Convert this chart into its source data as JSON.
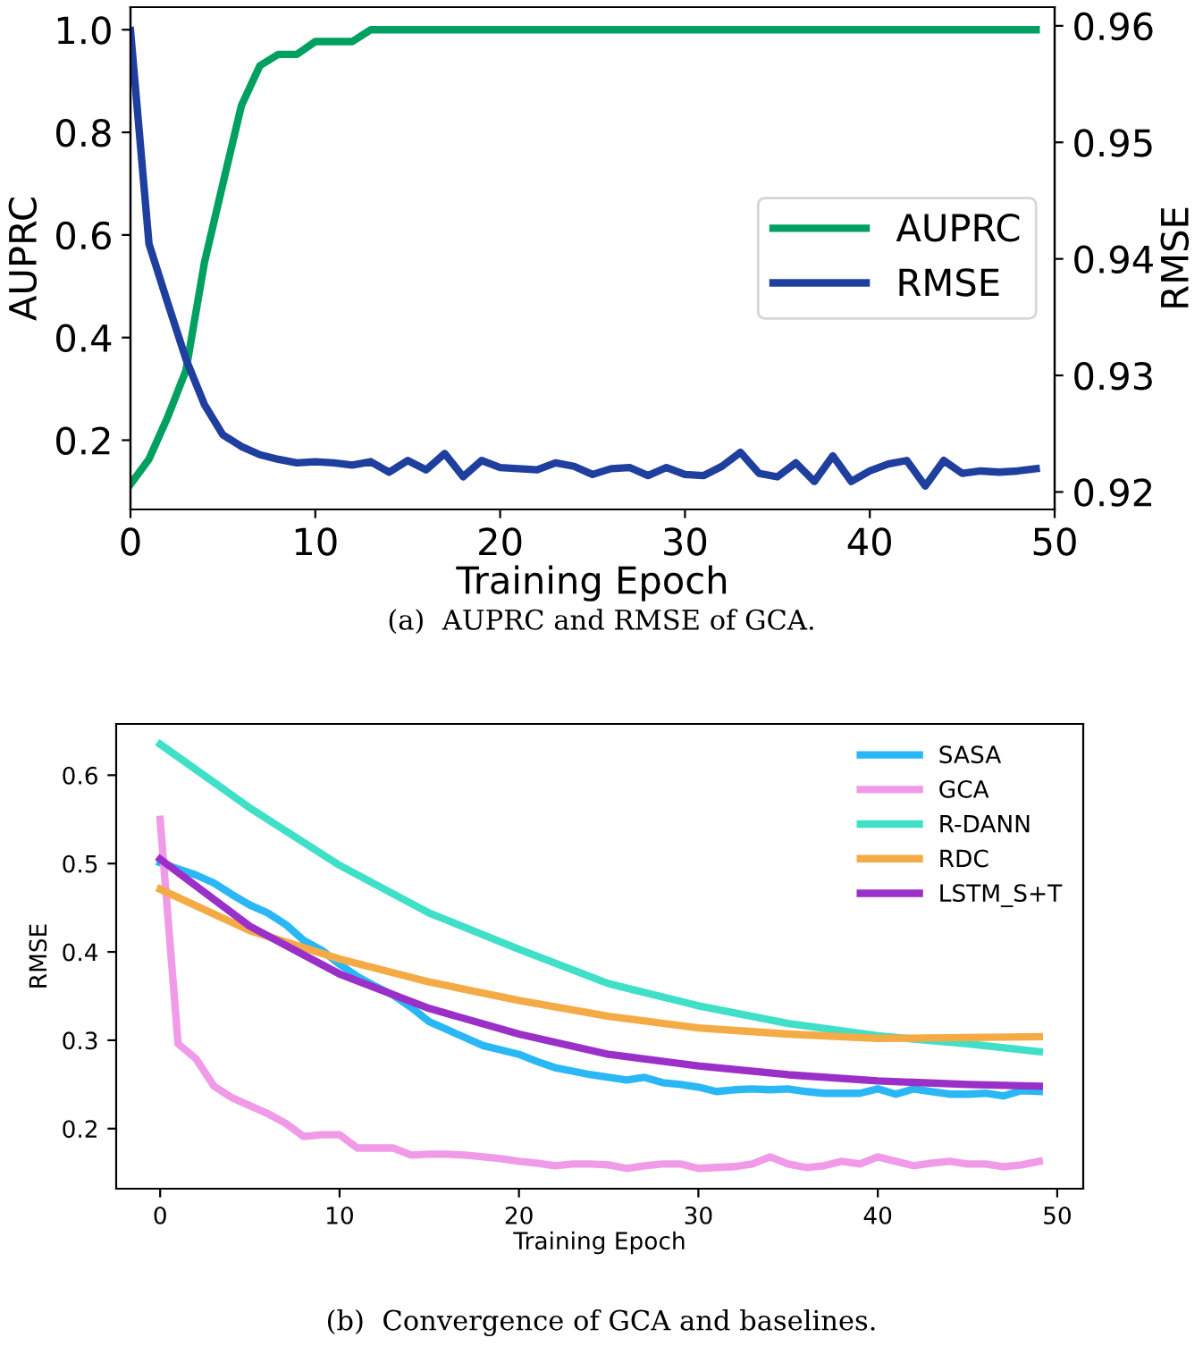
{
  "chart_data": [
    {
      "type": "line",
      "xlabel": "Training Epoch",
      "ylabel": "AUPRC",
      "y2label": "RMSE",
      "annotations": [
        "(a)  AUPRC and RMSE of GCA."
      ],
      "xlim": [
        0,
        50
      ],
      "xticks": [
        0,
        10,
        20,
        30,
        40,
        50
      ],
      "ylim": [
        0.065,
        1.044
      ],
      "yticks": [
        {
          "value": 0.2,
          "label": "0.2"
        },
        {
          "value": 0.4,
          "label": "0.4"
        },
        {
          "value": 0.6,
          "label": "0.6"
        },
        {
          "value": 0.8,
          "label": "0.8"
        },
        {
          "value": 1.0,
          "label": "1.0"
        }
      ],
      "y2lim": [
        0.9185,
        0.9616
      ],
      "y2ticks": [
        0.92,
        0.93,
        0.94,
        0.95,
        0.96
      ],
      "legend": "right",
      "grid": false,
      "series": [
        {
          "name": "AUPRC",
          "color": "#00a060",
          "x": [
            0,
            1,
            2,
            3,
            4,
            5,
            6,
            7,
            8,
            9,
            10,
            11,
            12,
            13,
            49
          ],
          "values": [
            0.114,
            0.163,
            0.244,
            0.336,
            0.546,
            0.7,
            0.852,
            0.93,
            0.952,
            0.952,
            0.977,
            0.977,
            0.977,
            1.0,
            1.0
          ]
        },
        {
          "name": "RMSE",
          "color": "#1f3f9f",
          "axis": "y2",
          "x": [
            0,
            1,
            2,
            3,
            4,
            5,
            6,
            7,
            8,
            9,
            10,
            11,
            12,
            13,
            14,
            15,
            16,
            17,
            18,
            19,
            20,
            21,
            22,
            23,
            24,
            25,
            26,
            27,
            28,
            29,
            30,
            31,
            32,
            33,
            34,
            35,
            36,
            37,
            38,
            39,
            40,
            41,
            42,
            43,
            44,
            45,
            46,
            47,
            48,
            49
          ],
          "values": [
            0.9596,
            0.9413,
            0.9363,
            0.9314,
            0.9275,
            0.9249,
            0.9239,
            0.9232,
            0.9228,
            0.9225,
            0.9226,
            0.9225,
            0.9223,
            0.9226,
            0.9217,
            0.9227,
            0.9219,
            0.9233,
            0.9213,
            0.9227,
            0.9221,
            0.922,
            0.9219,
            0.9225,
            0.9222,
            0.9215,
            0.922,
            0.9221,
            0.9214,
            0.9221,
            0.9215,
            0.9214,
            0.9222,
            0.9234,
            0.9216,
            0.9213,
            0.9225,
            0.9209,
            0.9231,
            0.9209,
            0.9218,
            0.9224,
            0.9227,
            0.9205,
            0.9227,
            0.9216,
            0.9218,
            0.9217,
            0.9218,
            0.922
          ]
        }
      ]
    },
    {
      "type": "line",
      "xlabel": "Training Epoch",
      "ylabel": "RMSE",
      "annotations": [
        "(b)  Convergence of GCA and baselines."
      ],
      "xlim": [
        -2.45,
        51.45
      ],
      "xticks": [
        0,
        10,
        20,
        30,
        40,
        50
      ],
      "ylim": [
        0.132,
        0.658
      ],
      "yticks": [
        0.2,
        0.3,
        0.4,
        0.5,
        0.6
      ],
      "legend": "top right",
      "grid": false,
      "series": [
        {
          "name": "SASA",
          "color": "#2ab7f5",
          "x": [
            0,
            1,
            2,
            3,
            4,
            5,
            6,
            7,
            8,
            9,
            10,
            11,
            12,
            13,
            14,
            15,
            16,
            17,
            18,
            19,
            20,
            21,
            22,
            23,
            24,
            25,
            26,
            27,
            28,
            29,
            30,
            31,
            32,
            33,
            34,
            35,
            36,
            37,
            38,
            39,
            40,
            41,
            42,
            43,
            44,
            45,
            46,
            47,
            48,
            49
          ],
          "values": [
            0.501,
            0.494,
            0.487,
            0.478,
            0.465,
            0.453,
            0.444,
            0.431,
            0.413,
            0.402,
            0.386,
            0.372,
            0.361,
            0.351,
            0.337,
            0.321,
            0.312,
            0.303,
            0.294,
            0.289,
            0.284,
            0.276,
            0.269,
            0.265,
            0.261,
            0.258,
            0.255,
            0.258,
            0.252,
            0.25,
            0.247,
            0.242,
            0.244,
            0.245,
            0.244,
            0.245,
            0.242,
            0.24,
            0.24,
            0.24,
            0.245,
            0.239,
            0.245,
            0.242,
            0.239,
            0.239,
            0.24,
            0.237,
            0.243,
            0.242
          ]
        },
        {
          "name": "GCA",
          "color": "#f09ae8",
          "x": [
            0,
            1,
            2,
            3,
            4,
            5,
            6,
            7,
            8,
            9,
            10,
            11,
            12,
            13,
            14,
            15,
            16,
            17,
            18,
            19,
            20,
            21,
            22,
            23,
            24,
            25,
            26,
            27,
            28,
            29,
            30,
            31,
            32,
            33,
            34,
            35,
            36,
            37,
            38,
            39,
            40,
            41,
            42,
            43,
            44,
            45,
            46,
            47,
            48,
            49
          ],
          "values": [
            0.55,
            0.296,
            0.279,
            0.248,
            0.235,
            0.226,
            0.217,
            0.206,
            0.191,
            0.193,
            0.193,
            0.178,
            0.178,
            0.178,
            0.17,
            0.171,
            0.171,
            0.17,
            0.168,
            0.166,
            0.163,
            0.161,
            0.158,
            0.16,
            0.16,
            0.159,
            0.155,
            0.158,
            0.16,
            0.16,
            0.155,
            0.156,
            0.157,
            0.16,
            0.168,
            0.16,
            0.156,
            0.158,
            0.163,
            0.16,
            0.168,
            0.163,
            0.158,
            0.161,
            0.163,
            0.16,
            0.16,
            0.157,
            0.159,
            0.163
          ]
        },
        {
          "name": "R-DANN",
          "color": "#40e0c8",
          "x": [
            0,
            5,
            10,
            15,
            20,
            25,
            30,
            35,
            40,
            45,
            49
          ],
          "values": [
            0.635,
            0.563,
            0.498,
            0.444,
            0.403,
            0.364,
            0.339,
            0.319,
            0.305,
            0.296,
            0.287
          ]
        },
        {
          "name": "RDC",
          "color": "#f5ab45",
          "x": [
            0,
            5,
            10,
            15,
            20,
            25,
            30,
            35,
            40,
            45,
            49
          ],
          "values": [
            0.471,
            0.424,
            0.392,
            0.366,
            0.345,
            0.327,
            0.314,
            0.307,
            0.302,
            0.303,
            0.304
          ]
        },
        {
          "name": "LSTM_S+T",
          "color": "#9b30c8",
          "x": [
            0,
            5,
            10,
            15,
            20,
            25,
            30,
            35,
            40,
            45,
            49
          ],
          "values": [
            0.505,
            0.429,
            0.375,
            0.336,
            0.307,
            0.284,
            0.271,
            0.261,
            0.254,
            0.25,
            0.248
          ]
        }
      ]
    }
  ]
}
